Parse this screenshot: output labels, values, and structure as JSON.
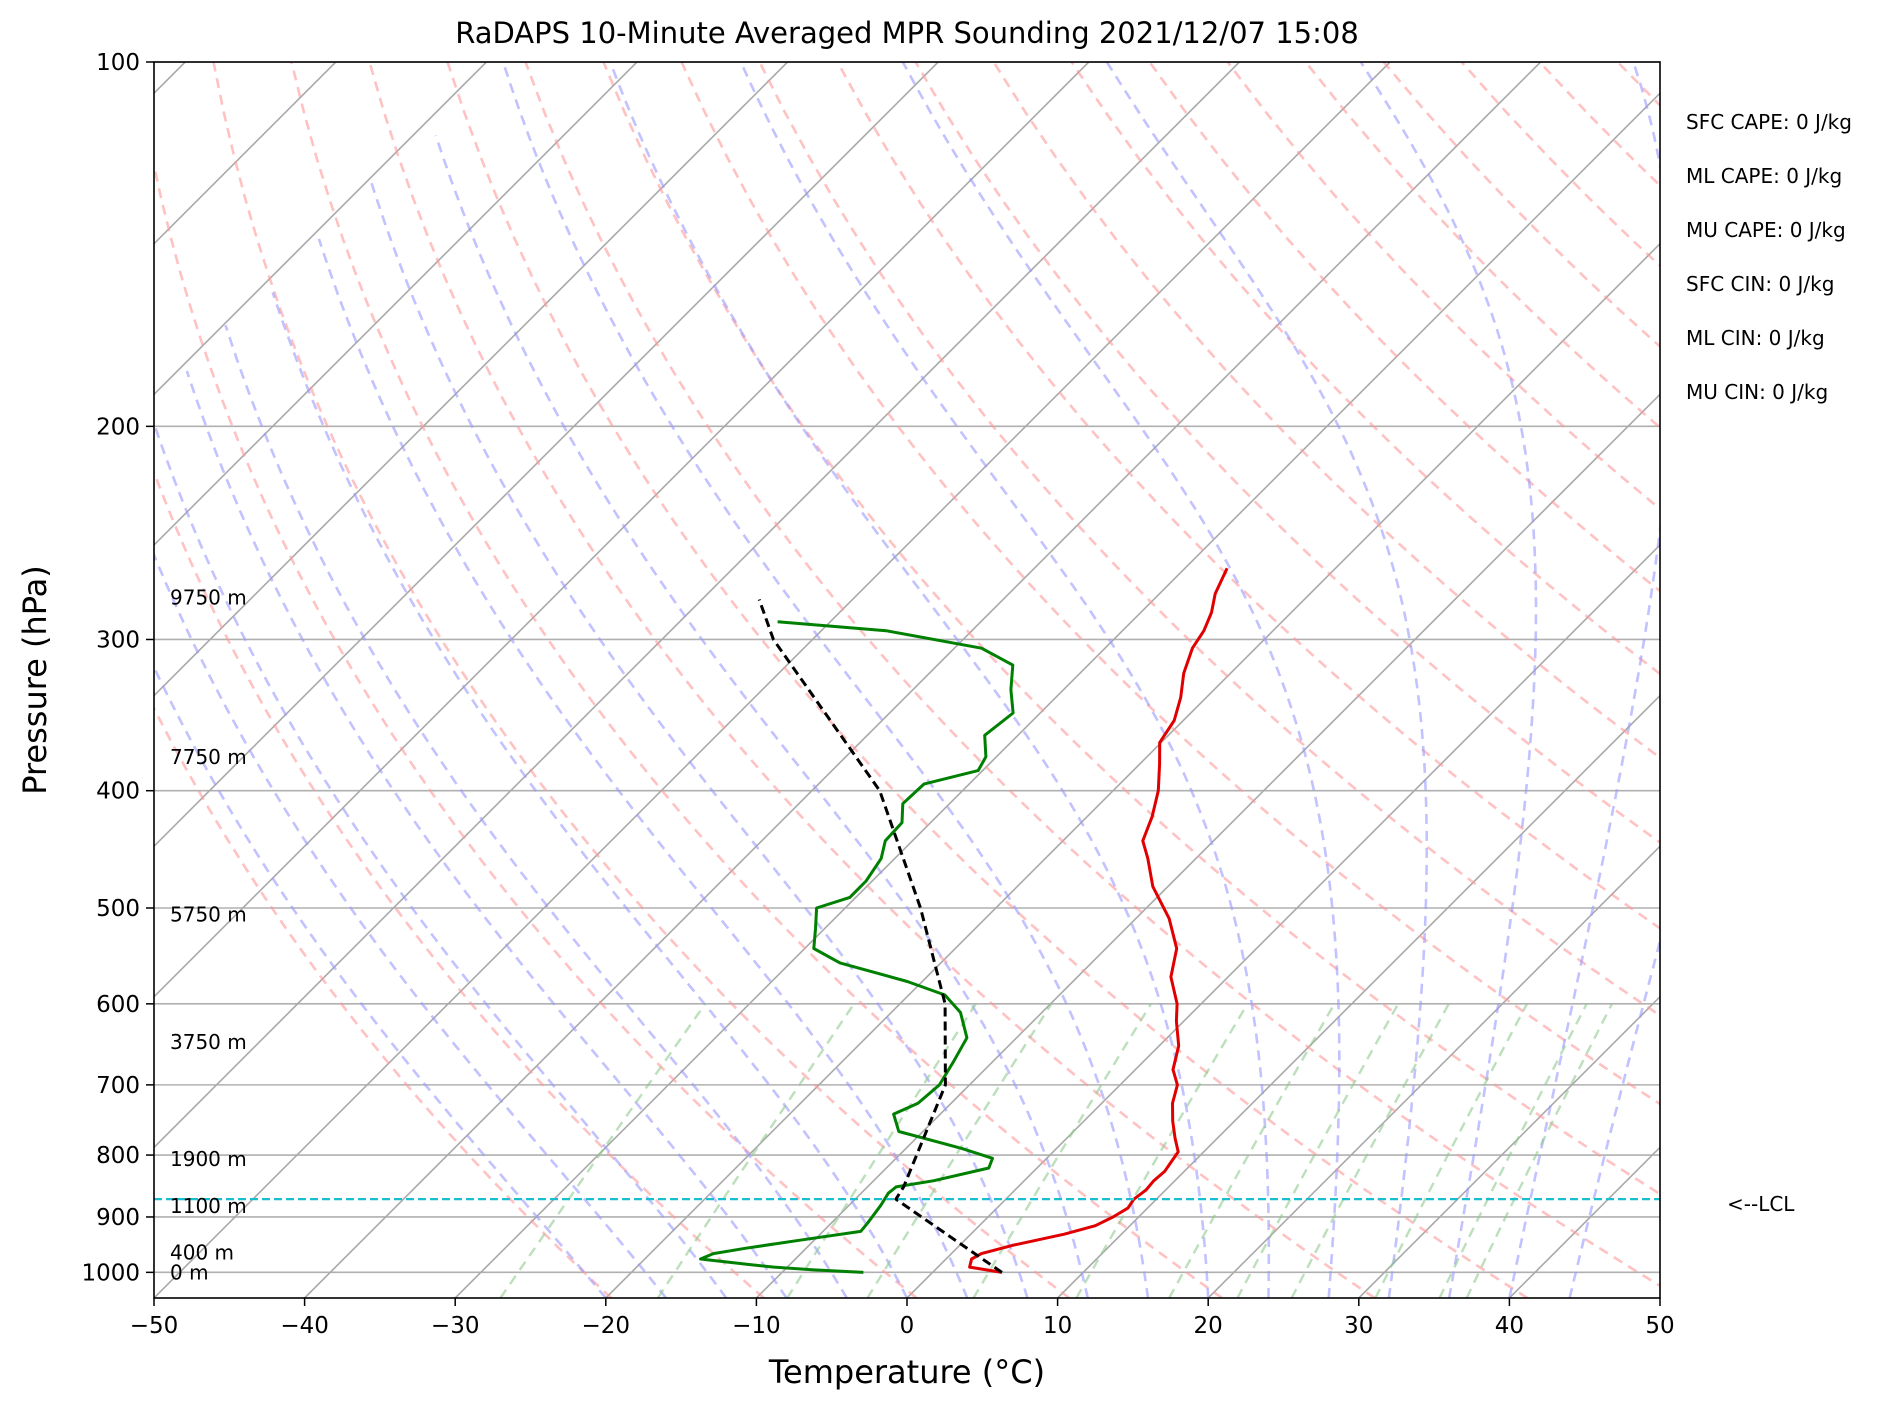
{
  "chart_data": {
    "type": "line",
    "title": "RaDAPS 10-Minute Averaged MPR Sounding 2021/12/07 15:08",
    "xlabel": "Temperature (°C)",
    "ylabel": "Pressure (hPa)",
    "xlim": [
      -50,
      50
    ],
    "ylim": [
      1050,
      100
    ],
    "y_scale": "log",
    "skew_degrees": 45,
    "grid": true,
    "x_ticks": [
      "−50",
      "−40",
      "−30",
      "−20",
      "−10",
      "0",
      "10",
      "20",
      "30",
      "40",
      "50"
    ],
    "y_ticks": [
      "100",
      "200",
      "300",
      "400",
      "500",
      "600",
      "700",
      "800",
      "900",
      "1000"
    ],
    "series": [
      {
        "kind": "temperature",
        "color": "#e00000",
        "points": [
          [
            1000,
            4.6
          ],
          [
            990,
            2.1
          ],
          [
            975,
            1.7
          ],
          [
            965,
            2.0
          ],
          [
            950,
            3.5
          ],
          [
            930,
            6.2
          ],
          [
            915,
            7.7
          ],
          [
            900,
            8.3
          ],
          [
            885,
            8.7
          ],
          [
            870,
            8.5
          ],
          [
            855,
            8.7
          ],
          [
            840,
            8.6
          ],
          [
            825,
            8.7
          ],
          [
            810,
            8.5
          ],
          [
            795,
            8.3
          ],
          [
            775,
            7.2
          ],
          [
            750,
            5.9
          ],
          [
            725,
            4.7
          ],
          [
            700,
            3.8
          ],
          [
            680,
            2.5
          ],
          [
            650,
            1.3
          ],
          [
            620,
            -0.5
          ],
          [
            600,
            -1.6
          ],
          [
            570,
            -3.8
          ],
          [
            540,
            -5.3
          ],
          [
            510,
            -7.8
          ],
          [
            480,
            -11.0
          ],
          [
            455,
            -13.2
          ],
          [
            440,
            -14.7
          ],
          [
            420,
            -15.7
          ],
          [
            400,
            -17.0
          ],
          [
            380,
            -18.7
          ],
          [
            365,
            -20.1
          ],
          [
            350,
            -20.6
          ],
          [
            335,
            -21.7
          ],
          [
            320,
            -23.1
          ],
          [
            305,
            -24.2
          ],
          [
            295,
            -24.6
          ],
          [
            285,
            -25.3
          ],
          [
            275,
            -26.3
          ],
          [
            262,
            -27.2
          ]
        ]
      },
      {
        "kind": "dewpoint",
        "color": "#008000",
        "points": [
          [
            1000,
            -4.6
          ],
          [
            995,
            -8.2
          ],
          [
            990,
            -10.9
          ],
          [
            985,
            -12.8
          ],
          [
            975,
            -16.3
          ],
          [
            965,
            -15.8
          ],
          [
            955,
            -14.0
          ],
          [
            940,
            -10.8
          ],
          [
            925,
            -7.5
          ],
          [
            910,
            -7.6
          ],
          [
            880,
            -7.9
          ],
          [
            860,
            -8.2
          ],
          [
            850,
            -8.1
          ],
          [
            840,
            -6.0
          ],
          [
            820,
            -3.2
          ],
          [
            805,
            -3.6
          ],
          [
            790,
            -6.3
          ],
          [
            765,
            -11.6
          ],
          [
            740,
            -13.1
          ],
          [
            725,
            -12.2
          ],
          [
            700,
            -12.0
          ],
          [
            670,
            -12.6
          ],
          [
            640,
            -13.3
          ],
          [
            610,
            -15.4
          ],
          [
            590,
            -17.6
          ],
          [
            575,
            -21.0
          ],
          [
            555,
            -26.7
          ],
          [
            540,
            -29.4
          ],
          [
            520,
            -30.6
          ],
          [
            500,
            -31.9
          ],
          [
            490,
            -30.4
          ],
          [
            475,
            -30.4
          ],
          [
            455,
            -30.9
          ],
          [
            440,
            -31.8
          ],
          [
            425,
            -31.9
          ],
          [
            410,
            -33.1
          ],
          [
            395,
            -33.0
          ],
          [
            385,
            -30.3
          ],
          [
            375,
            -30.7
          ],
          [
            360,
            -32.2
          ],
          [
            345,
            -31.8
          ],
          [
            330,
            -33.5
          ],
          [
            315,
            -35.0
          ],
          [
            305,
            -38.2
          ],
          [
            295,
            -45.7
          ],
          [
            290,
            -53.5
          ]
        ]
      },
      {
        "kind": "parcel",
        "color": "#000000",
        "dashed": true,
        "points": [
          [
            1000,
            4.6
          ],
          [
            870,
            -7.3
          ],
          [
            850,
            -7.6
          ],
          [
            700,
            -11.6
          ],
          [
            600,
            -17.0
          ],
          [
            500,
            -25.0
          ],
          [
            400,
            -35.5
          ],
          [
            300,
            -52.6
          ],
          [
            278,
            -56.2
          ]
        ]
      }
    ],
    "reference_lines": {
      "dry_adiabats": true,
      "moist_adiabats": true,
      "mixing_ratio_lines": true,
      "isotherm_grid": true
    },
    "lcl_pressure_hPa": 870,
    "lcl_label": "<--LCL",
    "height_labels": [
      {
        "pressure": 1000,
        "text": "0 m"
      },
      {
        "pressure": 963,
        "text": "400 m"
      },
      {
        "pressure": 881,
        "text": "1100 m"
      },
      {
        "pressure": 806,
        "text": "1900 m"
      },
      {
        "pressure": 645,
        "text": "3750 m"
      },
      {
        "pressure": 506,
        "text": "5750 m"
      },
      {
        "pressure": 375,
        "text": "7750 m"
      },
      {
        "pressure": 277,
        "text": "9750 m"
      }
    ],
    "legend": "none",
    "annotations": [
      "SFC CAPE: 0 J/kg",
      "ML CAPE: 0 J/kg",
      "MU CAPE: 0 J/kg",
      "SFC CIN: 0 J/kg",
      "ML CIN: 0 J/kg",
      "MU CIN: 0 J/kg"
    ]
  }
}
